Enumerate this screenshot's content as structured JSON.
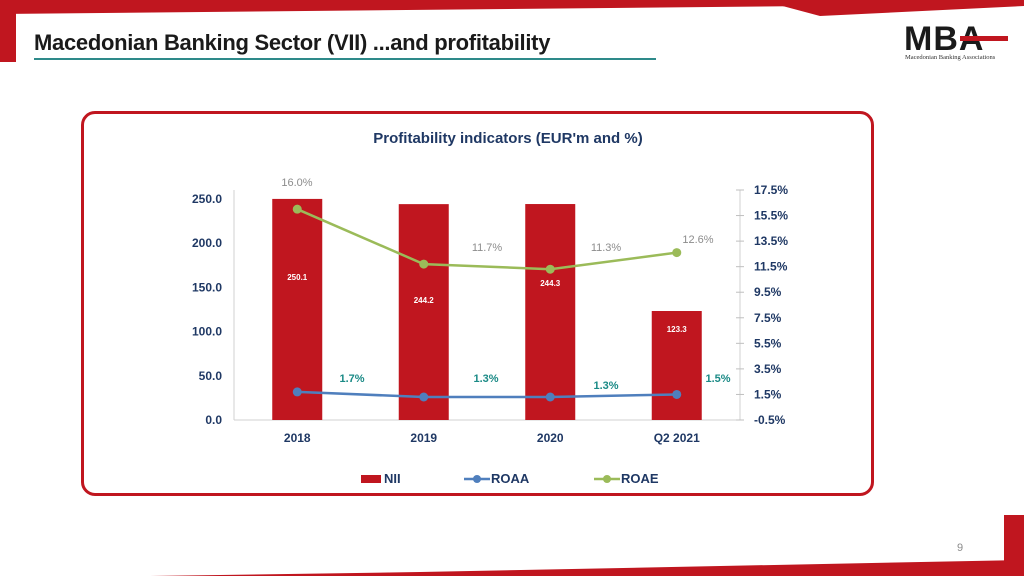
{
  "slide": {
    "title": "Macedonian Banking Sector (VII) ...and profitability",
    "page_number": "9"
  },
  "logo": {
    "text": "MBA",
    "subtitle": "Macedonian Banking Associations"
  },
  "colors": {
    "brand_red": "#c0161f",
    "roaa_blue": "#4f7fbd",
    "roae_green": "#9bbb59",
    "teal_label": "#1a8a86",
    "gray_label": "#8c8c8c"
  },
  "chart_data": {
    "type": "bar",
    "title": "Profitability indicators (EUR'm and %)",
    "categories": [
      "2018",
      "2019",
      "2020",
      "Q2 2021"
    ],
    "left_axis": {
      "min": 0,
      "max": 250,
      "ticks": [
        "0.0",
        "50.0",
        "100.0",
        "150.0",
        "200.0",
        "250.0"
      ]
    },
    "right_axis": {
      "min": -0.5,
      "max": 17.5,
      "ticks": [
        "-0.5%",
        "1.5%",
        "3.5%",
        "5.5%",
        "7.5%",
        "9.5%",
        "11.5%",
        "13.5%",
        "15.5%",
        "17.5%"
      ]
    },
    "series": [
      {
        "name": "NII",
        "type": "bar",
        "axis": "left",
        "values": [
          250.1,
          244.2,
          244.3,
          123.3
        ],
        "labels": [
          "250.1",
          "244.2",
          "244.3",
          "123.3"
        ]
      },
      {
        "name": "ROAA",
        "type": "line",
        "axis": "right",
        "values": [
          1.7,
          1.3,
          1.3,
          1.5
        ],
        "labels": [
          "1.7%",
          "1.3%",
          "1.3%",
          "1.5%"
        ]
      },
      {
        "name": "ROAE",
        "type": "line",
        "axis": "right",
        "values": [
          16.0,
          11.7,
          11.3,
          12.6
        ],
        "labels": [
          "16.0%",
          "11.7%",
          "11.3%",
          "12.6%"
        ]
      }
    ],
    "legend": {
      "position": "bottom",
      "items": [
        "NII",
        "ROAA",
        "ROAE"
      ]
    }
  }
}
